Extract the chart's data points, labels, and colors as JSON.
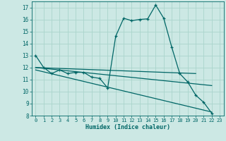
{
  "xlabel": "Humidex (Indice chaleur)",
  "background_color": "#cce8e4",
  "grid_color": "#aad4cc",
  "line_color": "#006666",
  "xlim": [
    -0.5,
    23.5
  ],
  "ylim": [
    8,
    17.5
  ],
  "yticks": [
    8,
    9,
    10,
    11,
    12,
    13,
    14,
    15,
    16,
    17
  ],
  "xticks": [
    0,
    1,
    2,
    3,
    4,
    5,
    6,
    7,
    8,
    9,
    10,
    11,
    12,
    13,
    14,
    15,
    16,
    17,
    18,
    19,
    20,
    21,
    22,
    23
  ],
  "series0_x": [
    0,
    1,
    2,
    3,
    4,
    5,
    6,
    7,
    8,
    9,
    10,
    11,
    12,
    13,
    14,
    15,
    16,
    17,
    18,
    19,
    20,
    21,
    22
  ],
  "series0_y": [
    13.0,
    12.0,
    11.5,
    11.8,
    11.5,
    11.6,
    11.6,
    11.2,
    11.1,
    10.3,
    14.6,
    16.1,
    15.9,
    16.0,
    16.05,
    17.2,
    16.1,
    13.7,
    11.5,
    10.8,
    9.7,
    9.1,
    8.2
  ],
  "series1_x": [
    0,
    20
  ],
  "series1_y": [
    12.0,
    11.5
  ],
  "series2_x": [
    0,
    22
  ],
  "series2_y": [
    12.0,
    10.5
  ],
  "series3_x": [
    0,
    22
  ],
  "series3_y": [
    11.8,
    8.3
  ]
}
